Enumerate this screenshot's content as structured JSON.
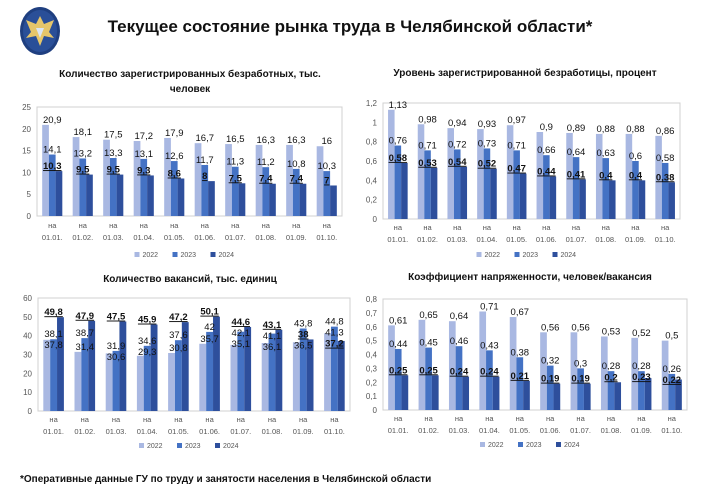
{
  "header": {
    "title": "Текущее состояние рынка труда в Челябинской области*",
    "logo": "emblem-icon"
  },
  "footer": {
    "note": "*Оперативные данные ГУ по труду и занятости населения в Челябинской области"
  },
  "colors": {
    "2022": "#a9b8e2",
    "2023": "#4472c4",
    "2024": "#2e4f9c"
  },
  "chart_data": [
    {
      "type": "bar",
      "title": [
        "Количество зарегистрированных безработных, тыс.",
        "человек"
      ],
      "categories": [
        "на 01.01.",
        "на 01.02.",
        "на 01.03.",
        "на 01.04.",
        "на 01.05.",
        "на 01.06.",
        "на 01.07.",
        "на 01.08.",
        "на 01.09.",
        "на 01.10."
      ],
      "series": [
        {
          "name": "2022",
          "values": [
            20.9,
            18.1,
            17.5,
            17.2,
            17.9,
            16.7,
            16.5,
            16.3,
            16.3,
            16
          ]
        },
        {
          "name": "2023",
          "values": [
            14.1,
            13.2,
            13.3,
            13.1,
            12.6,
            11.7,
            11.3,
            11.2,
            10.8,
            10.3
          ]
        },
        {
          "name": "2024",
          "values": [
            10.3,
            9.5,
            9.5,
            9.3,
            8.6,
            8,
            7.5,
            7.4,
            7.4,
            7
          ]
        }
      ],
      "ylim": [
        0,
        25
      ],
      "yticks": [
        0,
        5,
        10,
        15,
        20,
        25
      ],
      "decimals": 0,
      "legend": "bottom",
      "grid": false
    },
    {
      "type": "bar",
      "title": [
        "Уровень зарегистрированной безработицы, процент"
      ],
      "categories": [
        "на 01.01.",
        "на 01.02.",
        "на 01.03.",
        "на 01.04.",
        "на 01.05.",
        "на 01.06.",
        "на 01.07.",
        "на 01.08.",
        "на 01.09.",
        "на 01.10."
      ],
      "series": [
        {
          "name": "2022",
          "values": [
            1.13,
            0.98,
            0.94,
            0.93,
            0.97,
            0.9,
            0.89,
            0.88,
            0.88,
            0.86
          ]
        },
        {
          "name": "2023",
          "values": [
            0.76,
            0.71,
            0.72,
            0.73,
            0.71,
            0.66,
            0.64,
            0.63,
            0.6,
            0.58
          ]
        },
        {
          "name": "2024",
          "values": [
            0.58,
            0.53,
            0.54,
            0.52,
            0.47,
            0.44,
            0.41,
            0.4,
            0.4,
            0.38
          ]
        }
      ],
      "ylim": [
        0,
        1.2
      ],
      "yticks": [
        0,
        0.2,
        0.4,
        0.6,
        0.8,
        1,
        1.2
      ],
      "decimals": 1,
      "legend": "bottom",
      "grid": false
    },
    {
      "type": "bar",
      "title": [
        "Количество вакансий, тыс. единиц"
      ],
      "categories": [
        "на 01.01.",
        "на 01.02.",
        "на 01.03.",
        "на 01.04.",
        "на 01.05.",
        "на 01.06.",
        "на 01.07.",
        "на 01.08.",
        "на 01.09.",
        "на 01.10."
      ],
      "series": [
        {
          "name": "2022",
          "values": [
            37.8,
            31.4,
            30.6,
            29.3,
            30.8,
            35.7,
            35.1,
            36.1,
            36.5,
            41.3
          ]
        },
        {
          "name": "2023",
          "values": [
            38.1,
            38.7,
            31.9,
            34.6,
            37.6,
            42,
            42.1,
            41.1,
            43.8,
            44.8
          ]
        },
        {
          "name": "2024",
          "values": [
            49.8,
            47.9,
            47.5,
            45.9,
            47.2,
            50.1,
            44.6,
            43.1,
            38,
            37.2
          ]
        }
      ],
      "ylim": [
        0,
        60
      ],
      "yticks": [
        0,
        10,
        20,
        30,
        40,
        50,
        60
      ],
      "decimals": 0,
      "legend": "bottom",
      "grid": false
    },
    {
      "type": "bar",
      "title": [
        "Коэффициент напряженности, человек/вакансия"
      ],
      "categories": [
        "на 01.01.",
        "на 01.02.",
        "на 01.03.",
        "на 01.04.",
        "на 01.05.",
        "на 01.06.",
        "на 01.07.",
        "на 01.08.",
        "на 01.09.",
        "на 01.10."
      ],
      "series": [
        {
          "name": "2022",
          "values": [
            0.61,
            0.65,
            0.64,
            0.71,
            0.67,
            0.56,
            0.56,
            0.53,
            0.52,
            0.5
          ]
        },
        {
          "name": "2023",
          "values": [
            0.44,
            0.45,
            0.46,
            0.43,
            0.38,
            0.32,
            0.3,
            0.28,
            0.28,
            0.26
          ]
        },
        {
          "name": "2024",
          "values": [
            0.25,
            0.25,
            0.24,
            0.24,
            0.21,
            0.19,
            0.19,
            0.2,
            0.23,
            0.22
          ]
        }
      ],
      "ylim": [
        0,
        0.8
      ],
      "yticks": [
        0,
        0.1,
        0.2,
        0.3,
        0.4,
        0.5,
        0.6,
        0.7,
        0.8
      ],
      "decimals": 1,
      "legend": "bottom",
      "grid": false
    }
  ]
}
